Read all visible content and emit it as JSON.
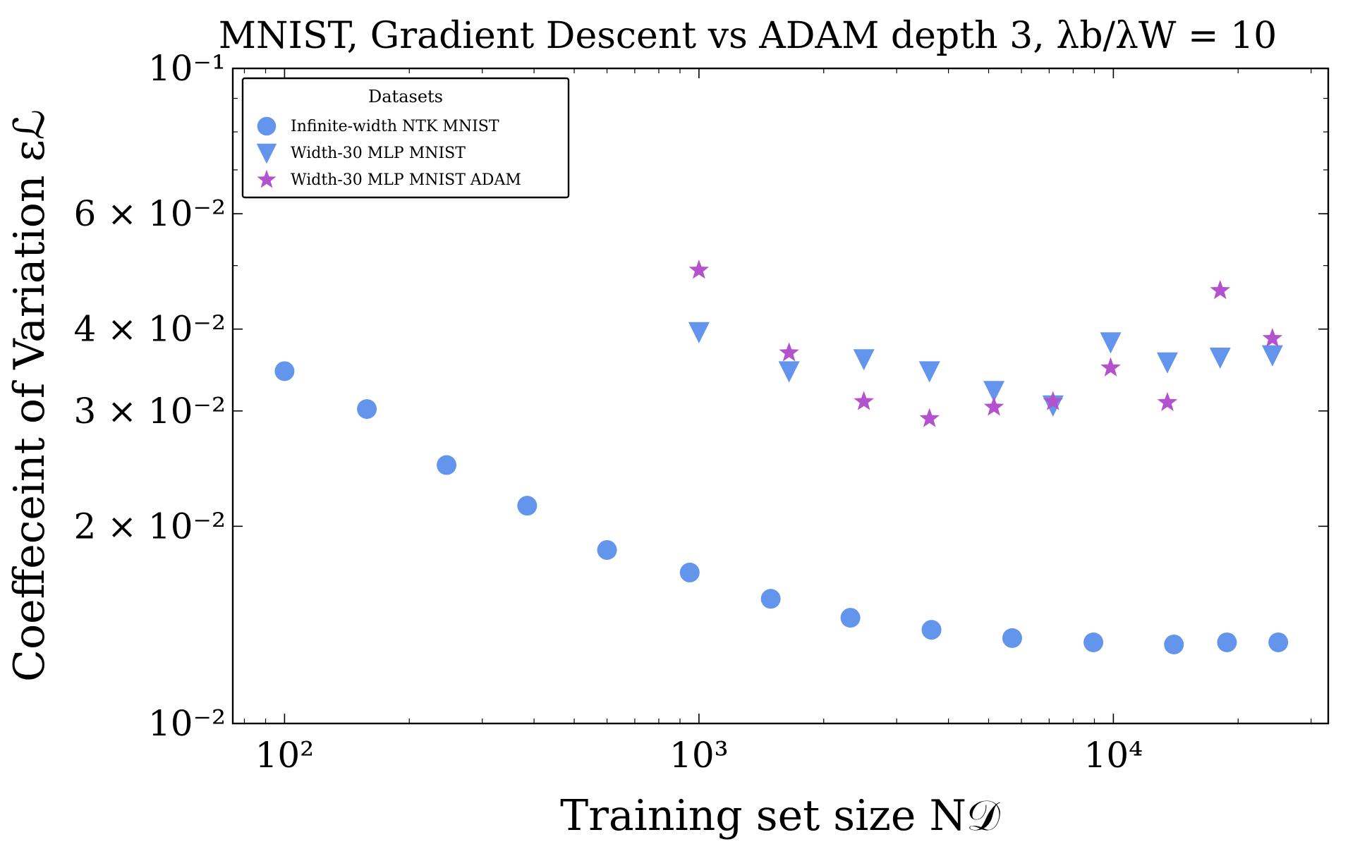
{
  "chart_data": {
    "type": "scatter",
    "title": "MNIST, Gradient Descent vs ADAM depth 3, λb/λW = 10",
    "xlabel": "Training set size N𝒟",
    "ylabel": "Coeffeceint of Variation εℒ",
    "xscale": "log",
    "yscale": "log",
    "xlim": [
      75,
      33000
    ],
    "ylim": [
      0.01,
      0.1
    ],
    "x_ticks": [
      {
        "value": 100,
        "label": "10²"
      },
      {
        "value": 1000,
        "label": "10³"
      },
      {
        "value": 10000,
        "label": "10⁴"
      }
    ],
    "y_ticks": [
      {
        "value": 0.1,
        "label": "10⁻¹"
      },
      {
        "value": 0.06,
        "label": "6 × 10⁻²"
      },
      {
        "value": 0.04,
        "label": "4 × 10⁻²"
      },
      {
        "value": 0.03,
        "label": "3 × 10⁻²"
      },
      {
        "value": 0.02,
        "label": "2 × 10⁻²"
      },
      {
        "value": 0.01,
        "label": "10⁻²"
      }
    ],
    "legend": {
      "title": "Datasets",
      "position": "top-left"
    },
    "series": [
      {
        "name": "Infinite-width NTK MNIST",
        "marker": "circle",
        "color": "#6495ED",
        "points": [
          [
            100,
            0.0345
          ],
          [
            158,
            0.0302
          ],
          [
            246,
            0.0248
          ],
          [
            385,
            0.0215
          ],
          [
            600,
            0.0184
          ],
          [
            950,
            0.017
          ],
          [
            1490,
            0.0155
          ],
          [
            2320,
            0.0145
          ],
          [
            3640,
            0.0139
          ],
          [
            5700,
            0.0135
          ],
          [
            8950,
            0.0133
          ],
          [
            14000,
            0.0132
          ],
          [
            18800,
            0.0133
          ],
          [
            25000,
            0.0133
          ]
        ]
      },
      {
        "name": "Width-30 MLP MNIST",
        "marker": "triangle-down",
        "color": "#6495ED",
        "points": [
          [
            1000,
            0.0396
          ],
          [
            1650,
            0.0345
          ],
          [
            2500,
            0.036
          ],
          [
            3600,
            0.0345
          ],
          [
            5150,
            0.0322
          ],
          [
            7150,
            0.0306
          ],
          [
            9850,
            0.0382
          ],
          [
            13500,
            0.0356
          ],
          [
            18100,
            0.0362
          ],
          [
            24200,
            0.0365
          ]
        ]
      },
      {
        "name": "Width-30 MLP MNIST ADAM",
        "marker": "star",
        "color": "#B452CD",
        "points": [
          [
            1000,
            0.0492
          ],
          [
            1650,
            0.0368
          ],
          [
            2500,
            0.031
          ],
          [
            3600,
            0.0292
          ],
          [
            5150,
            0.0304
          ],
          [
            7150,
            0.031
          ],
          [
            9850,
            0.0349
          ],
          [
            13500,
            0.0309
          ],
          [
            18100,
            0.0458
          ],
          [
            24200,
            0.0387
          ]
        ]
      }
    ]
  }
}
